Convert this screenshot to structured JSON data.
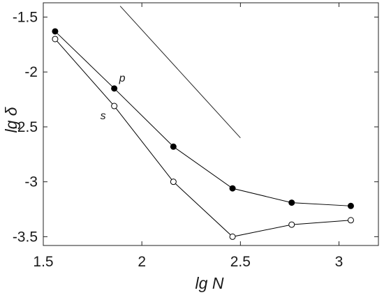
{
  "chart_data": {
    "type": "line",
    "title": "",
    "xlabel": "lg N",
    "ylabel": "lg δ",
    "xlim": [
      1.5,
      3.2
    ],
    "ylim": [
      -3.58,
      -1.37
    ],
    "xticks": [
      1.5,
      2,
      2.5,
      3
    ],
    "xtick_labels": [
      "1.5",
      "2",
      "2.5",
      "3"
    ],
    "yticks": [
      -1.5,
      -2,
      -2.5,
      -3,
      -3.5
    ],
    "ytick_labels": [
      "-1.5",
      "-2",
      "-2.5",
      "-3",
      "-3.5"
    ],
    "grid": false,
    "series": [
      {
        "name": "p",
        "marker": "filled-circle",
        "color": "#000000",
        "x": [
          1.56,
          1.86,
          2.16,
          2.46,
          2.76,
          3.06
        ],
        "y": [
          -1.63,
          -2.15,
          -2.68,
          -3.06,
          -3.19,
          -3.22
        ]
      },
      {
        "name": "s",
        "marker": "open-circle",
        "color": "#000000",
        "x": [
          1.56,
          1.86,
          2.16,
          2.46,
          2.76,
          3.06
        ],
        "y": [
          -1.7,
          -2.31,
          -3.0,
          -3.5,
          -3.39,
          -3.35
        ]
      }
    ],
    "reference_line": {
      "x": [
        1.89,
        2.5
      ],
      "y": [
        -1.4,
        -2.6
      ]
    }
  }
}
